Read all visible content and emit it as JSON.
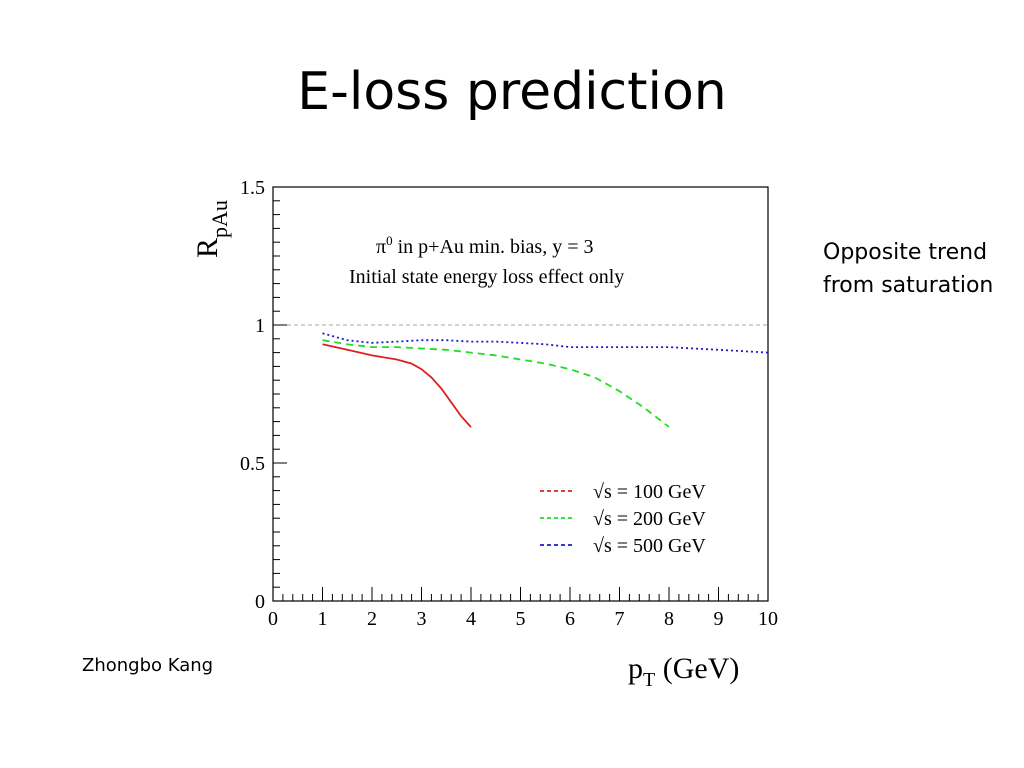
{
  "slide": {
    "title": "E-loss prediction",
    "side_note_line1": "Opposite trend",
    "side_note_line2": "from saturation",
    "author": "Zhongbo Kang"
  },
  "chart_data": {
    "type": "line",
    "title_line1_symbol": "π",
    "title_line1_sup": "0",
    "title_line1_rest": " in p+Au min. bias, y = 3",
    "title_line2": "Initial state energy loss effect only",
    "ylabel_main": "R",
    "ylabel_sub": "pAu",
    "xlabel_main": "p",
    "xlabel_sub": "T",
    "xlabel_unit": " (GeV)",
    "xlim": [
      0,
      10
    ],
    "ylim": [
      0,
      1.5
    ],
    "x_ticks": [
      "0",
      "1",
      "2",
      "3",
      "4",
      "5",
      "6",
      "7",
      "8",
      "9",
      "10"
    ],
    "y_ticks": [
      {
        "value": 0,
        "label": "0"
      },
      {
        "value": 0.5,
        "label": "0.5"
      },
      {
        "value": 1,
        "label": "1"
      },
      {
        "value": 1.5,
        "label": "1.5"
      }
    ],
    "reference_line": 1,
    "legend_position": "lower-right",
    "series": [
      {
        "name": "√s = 100 GeV",
        "color": "#e02020",
        "style": "solid",
        "x": [
          1.0,
          1.5,
          2.0,
          2.5,
          2.8,
          3.0,
          3.2,
          3.4,
          3.6,
          3.8,
          4.0
        ],
        "y": [
          0.93,
          0.91,
          0.89,
          0.875,
          0.86,
          0.84,
          0.81,
          0.77,
          0.72,
          0.67,
          0.63
        ]
      },
      {
        "name": "√s = 200 GeV",
        "color": "#22dd22",
        "style": "dashed",
        "x": [
          1.0,
          1.5,
          2.0,
          2.5,
          3.0,
          3.5,
          4.0,
          4.5,
          5.0,
          5.5,
          6.0,
          6.5,
          7.0,
          7.5,
          8.0
        ],
        "y": [
          0.945,
          0.93,
          0.92,
          0.92,
          0.915,
          0.91,
          0.9,
          0.89,
          0.875,
          0.86,
          0.84,
          0.81,
          0.76,
          0.7,
          0.63
        ]
      },
      {
        "name": "√s = 500 GeV",
        "color": "#1a1acc",
        "style": "dotted",
        "x": [
          1.0,
          1.5,
          2.0,
          2.5,
          3.0,
          3.5,
          4.0,
          4.5,
          5.0,
          5.5,
          6.0,
          6.5,
          7.0,
          7.5,
          8.0,
          8.5,
          9.0,
          9.5,
          10.0
        ],
        "y": [
          0.97,
          0.945,
          0.935,
          0.94,
          0.945,
          0.945,
          0.94,
          0.94,
          0.935,
          0.93,
          0.92,
          0.92,
          0.92,
          0.92,
          0.92,
          0.915,
          0.91,
          0.905,
          0.9
        ]
      }
    ]
  }
}
